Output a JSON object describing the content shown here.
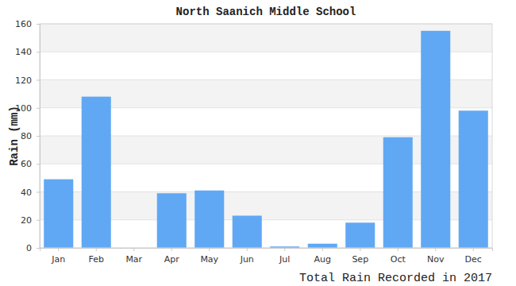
{
  "chart_data": {
    "type": "bar",
    "title": "North Saanich Middle School",
    "y_label": "Rain (mm)",
    "x_label": "Total Rain Recorded in 2017",
    "categories": [
      "Jan",
      "Feb",
      "Mar",
      "Apr",
      "May",
      "Jun",
      "Jul",
      "Aug",
      "Sep",
      "Oct",
      "Nov",
      "Dec"
    ],
    "values": [
      49,
      108,
      0,
      39,
      41,
      23,
      1,
      3,
      18,
      79,
      155,
      98
    ],
    "color": "#60a8f4",
    "ylim": [
      0,
      160
    ],
    "yticks": [
      0,
      20,
      40,
      60,
      80,
      100,
      120,
      140,
      160
    ],
    "grid": true
  }
}
